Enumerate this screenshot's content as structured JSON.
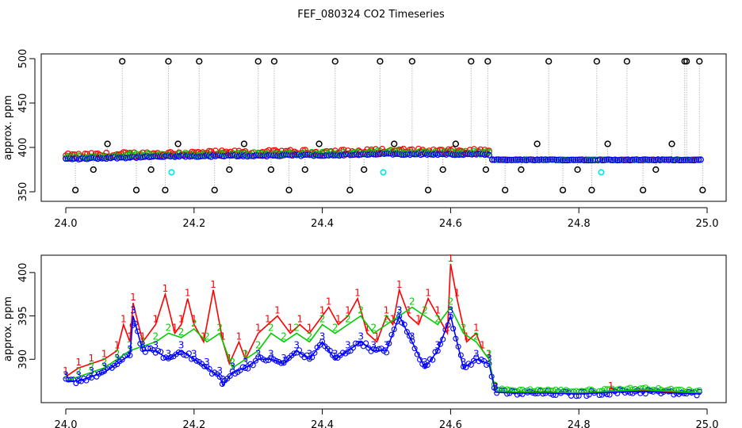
{
  "title": "FEF_080324  CO2 Timeseries",
  "colors": {
    "black": "#000000",
    "red": "#ff0000",
    "green": "#00cd00",
    "blue": "#0000ff",
    "cyan": "#00e5ee",
    "gray": "#9a9a9a"
  },
  "chart_data": [
    {
      "type": "scatter",
      "ylabel": "approx. ppm",
      "xlabel": "",
      "xlim": [
        24.0,
        25.0
      ],
      "ylim": [
        350,
        500
      ],
      "x_ticks": [
        24.0,
        24.2,
        24.4,
        24.6,
        24.8,
        25.0
      ],
      "x_tick_labels": [
        "24.0",
        "24.2",
        "24.4",
        "24.6",
        "24.8",
        "25.0"
      ],
      "y_ticks": [
        350,
        400,
        450,
        500
      ],
      "y_tick_labels": [
        "350",
        "400",
        "450",
        "500"
      ],
      "baseline_segments": [
        {
          "x0": 24.0,
          "x1": 24.1,
          "y0": 387,
          "y1": 389
        },
        {
          "x0": 24.1,
          "x1": 24.17,
          "y0": 389,
          "y1": 390
        },
        {
          "x0": 24.17,
          "x1": 24.33,
          "y0": 390,
          "y1": 391
        },
        {
          "x0": 24.33,
          "x1": 24.48,
          "y0": 391,
          "y1": 392
        },
        {
          "x0": 24.48,
          "x1": 24.66,
          "y0": 393,
          "y1": 392
        },
        {
          "x0": 24.665,
          "x1": 24.825,
          "y0": 386,
          "y1": 386
        },
        {
          "x0": 24.83,
          "x1": 24.99,
          "y0": 386,
          "y1": 386
        }
      ],
      "series": [
        {
          "name": "black outliers",
          "color": "black",
          "x": [
            24.015,
            24.043,
            24.065,
            24.088,
            24.11,
            24.133,
            24.155,
            24.16,
            24.175,
            24.208,
            24.232,
            24.255,
            24.278,
            24.3,
            24.32,
            24.325,
            24.348,
            24.373,
            24.395,
            24.42,
            24.443,
            24.465,
            24.49,
            24.512,
            24.54,
            24.565,
            24.588,
            24.608,
            24.632,
            24.655,
            24.658,
            24.685,
            24.71,
            24.735,
            24.753,
            24.775,
            24.798,
            24.82,
            24.828,
            24.845,
            24.875,
            24.9,
            24.92,
            24.945,
            24.965,
            24.968,
            24.988,
            24.993
          ],
          "y": [
            352,
            375,
            404,
            497,
            352,
            375,
            352,
            497,
            404,
            497,
            352,
            375,
            404,
            497,
            375,
            497,
            352,
            375,
            404,
            497,
            352,
            375,
            497,
            404,
            497,
            352,
            375,
            404,
            497,
            375,
            497,
            352,
            375,
            404,
            497,
            352,
            375,
            352,
            497,
            404,
            497,
            352,
            375,
            404,
            497,
            497,
            497,
            352
          ]
        },
        {
          "name": "cyan",
          "color": "cyan",
          "x": [
            24.165,
            24.495,
            24.835
          ],
          "y": [
            372,
            372,
            372
          ]
        }
      ]
    },
    {
      "type": "line",
      "ylabel": "approx. ppm",
      "xlabel": "",
      "xlim": [
        24.0,
        25.0
      ],
      "ylim": [
        385,
        402
      ],
      "x_ticks": [
        24.0,
        24.2,
        24.4,
        24.6,
        24.8,
        25.0
      ],
      "x_tick_labels": [
        "24.0",
        "24.2",
        "24.4",
        "24.6",
        "24.8",
        "25.0"
      ],
      "y_ticks": [
        390,
        395,
        400
      ],
      "y_tick_labels": [
        "390",
        "395",
        "400"
      ],
      "series": [
        {
          "name": "1",
          "color": "red",
          "x": [
            24.0,
            24.02,
            24.04,
            24.06,
            24.08,
            24.09,
            24.1,
            24.105,
            24.12,
            24.14,
            24.155,
            24.17,
            24.18,
            24.19,
            24.2,
            24.215,
            24.23,
            24.245,
            24.255,
            24.27,
            24.28,
            24.3,
            24.315,
            24.33,
            24.35,
            24.365,
            24.38,
            24.4,
            24.41,
            24.425,
            24.44,
            24.455,
            24.47,
            24.485,
            24.5,
            24.51,
            24.52,
            24.535,
            24.55,
            24.565,
            24.58,
            24.595,
            24.6,
            24.61,
            24.625,
            24.64,
            24.65,
            24.66,
            24.67,
            24.7,
            24.75,
            24.8,
            24.85,
            24.9,
            24.95,
            24.99
          ],
          "y": [
            388,
            389,
            389.5,
            390,
            391,
            394,
            392,
            396.5,
            392,
            394,
            397.5,
            393,
            394,
            397,
            394,
            392,
            398,
            392,
            389.5,
            392,
            390,
            393,
            394,
            395,
            393,
            394,
            393,
            395,
            396,
            394,
            395,
            397,
            393,
            392,
            395,
            394,
            398,
            395,
            394,
            397,
            395,
            393,
            401,
            397,
            392,
            393,
            391,
            390,
            386.3,
            386.2,
            386.2,
            386.1,
            386.3,
            386.4,
            386.2,
            386.0
          ]
        },
        {
          "name": "2",
          "color": "green",
          "x": [
            24.0,
            24.02,
            24.04,
            24.06,
            24.08,
            24.1,
            24.12,
            24.14,
            24.16,
            24.18,
            24.2,
            24.22,
            24.24,
            24.26,
            24.28,
            24.3,
            24.32,
            24.34,
            24.36,
            24.38,
            24.4,
            24.42,
            24.44,
            24.46,
            24.48,
            24.5,
            24.52,
            24.54,
            24.56,
            24.58,
            24.6,
            24.62,
            24.64,
            24.66,
            24.67,
            24.7,
            24.75,
            24.8,
            24.85,
            24.9,
            24.95,
            24.99
          ],
          "y": [
            387.5,
            388,
            388.5,
            389,
            390,
            391,
            391.5,
            392,
            393,
            392.5,
            393.5,
            392,
            393,
            389,
            390,
            391,
            393,
            392,
            393,
            392,
            394,
            393,
            394,
            395,
            393,
            394,
            395,
            396,
            395,
            394,
            396,
            393,
            392,
            390,
            386.3,
            386.2,
            386.2,
            386.1,
            386.3,
            386.5,
            386.3,
            386.1
          ]
        },
        {
          "name": "3",
          "color": "blue",
          "x": [
            24.0,
            24.02,
            24.04,
            24.06,
            24.08,
            24.1,
            24.105,
            24.12,
            24.14,
            24.16,
            24.18,
            24.2,
            24.22,
            24.24,
            24.245,
            24.26,
            24.28,
            24.3,
            24.32,
            24.34,
            24.36,
            24.38,
            24.4,
            24.42,
            24.44,
            24.46,
            24.48,
            24.5,
            24.52,
            24.54,
            24.56,
            24.58,
            24.6,
            24.62,
            24.64,
            24.66,
            24.67,
            24.7,
            24.75,
            24.8,
            24.85,
            24.9,
            24.95,
            24.99
          ],
          "y": [
            387.5,
            387.5,
            388,
            388.5,
            389.5,
            390.5,
            395,
            391,
            391,
            390,
            391,
            390,
            389,
            388,
            387,
            388.5,
            389,
            390,
            390,
            389.5,
            391,
            390,
            392,
            390,
            391,
            392,
            391,
            391,
            395,
            392,
            389,
            391,
            395,
            389,
            390,
            389.5,
            386.2,
            386.1,
            386.1,
            386.0,
            386.2,
            386.3,
            386.1,
            386.0
          ]
        }
      ]
    }
  ]
}
